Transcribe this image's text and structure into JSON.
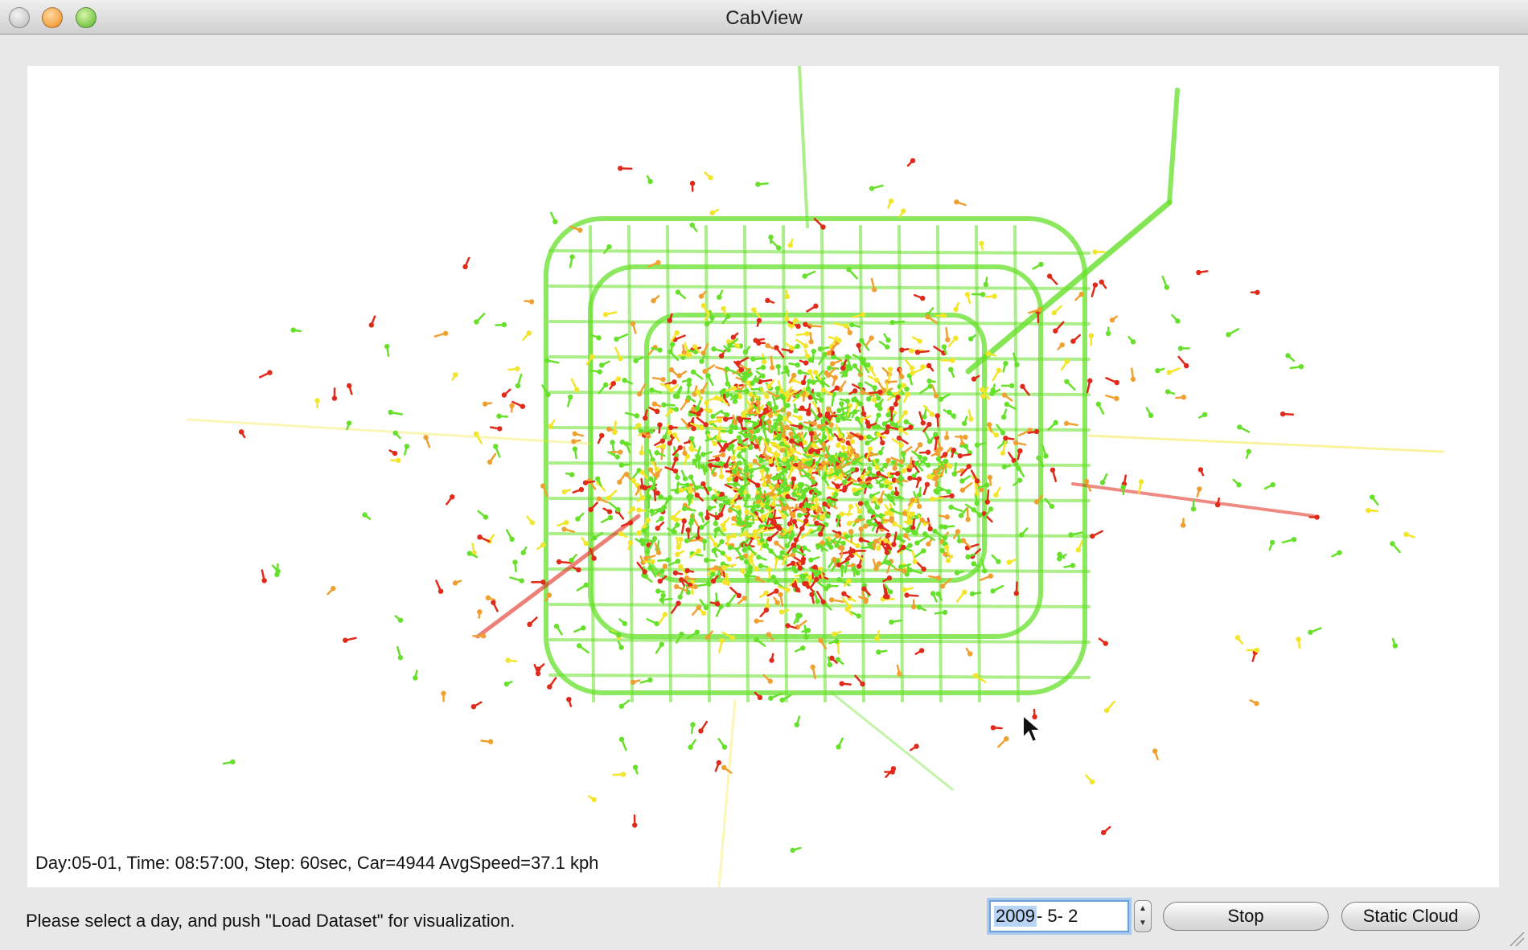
{
  "window": {
    "title": "CabView"
  },
  "map": {
    "status_text": "Day:05-01, Time: 08:57:00, Step: 60sec, Car=4944 AvgSpeed=37.1 kph",
    "colors": {
      "fast": "#66e02a",
      "medium": "#f2e52a",
      "slow_orange": "#f0a030",
      "slow_red": "#e02a1a",
      "background": "#ffffff"
    }
  },
  "footer": {
    "hint": "Please select a day, and push \"Load Dataset\" for visualization.",
    "date_year": "2009",
    "date_rest": "- 5- 2",
    "stop_label": "Stop",
    "static_cloud_label": "Static Cloud"
  }
}
